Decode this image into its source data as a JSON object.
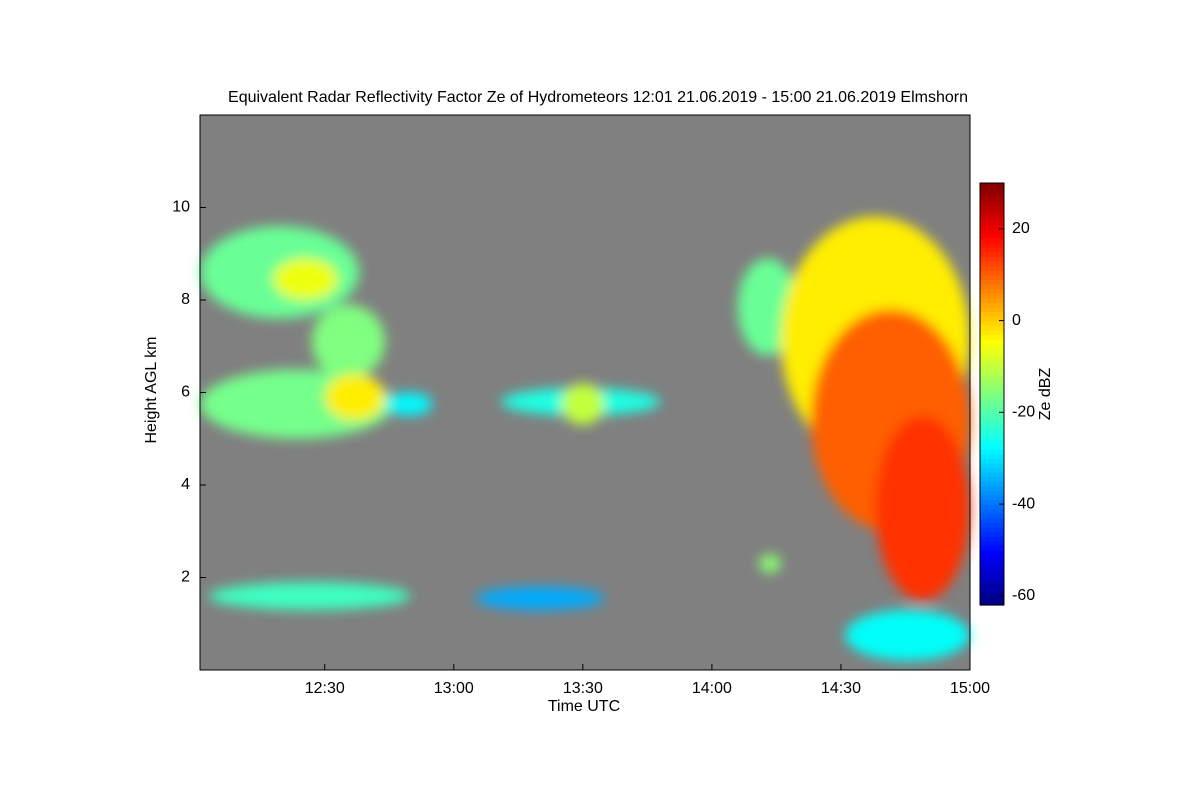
{
  "chart_data": {
    "type": "heatmap",
    "title": "Equivalent Radar Reflectivity Factor Ze of Hydrometeors   12:01 21.06.2019 - 15:00 21.06.2019 Elmshorn",
    "x_label": "Time UTC",
    "y_label": "Height AGL km",
    "colorbar_label": "Ze dBZ",
    "xlim": [
      721,
      900
    ],
    "xticks": [
      {
        "value": 750,
        "label": "12:30"
      },
      {
        "value": 780,
        "label": "13:00"
      },
      {
        "value": 810,
        "label": "13:30"
      },
      {
        "value": 840,
        "label": "14:00"
      },
      {
        "value": 870,
        "label": "14:30"
      },
      {
        "value": 900,
        "label": "15:00"
      }
    ],
    "ylim": [
      0,
      12
    ],
    "yticks": [
      2,
      4,
      6,
      8,
      10
    ],
    "zlim": [
      -62,
      30
    ],
    "zticks": [
      -60,
      -40,
      -20,
      0,
      20
    ],
    "background": "#808080",
    "cells": [
      {
        "x": [
          721,
          758
        ],
        "y": [
          7.6,
          9.6
        ],
        "ze": -18
      },
      {
        "x": [
          738,
          753
        ],
        "y": [
          8.0,
          8.9
        ],
        "ze": -6
      },
      {
        "x": [
          721,
          766
        ],
        "y": [
          5.0,
          6.5
        ],
        "ze": -17
      },
      {
        "x": [
          747,
          764
        ],
        "y": [
          6.3,
          7.9
        ],
        "ze": -16
      },
      {
        "x": [
          750,
          764
        ],
        "y": [
          5.4,
          6.4
        ],
        "ze": -3
      },
      {
        "x": [
          764,
          775
        ],
        "y": [
          5.5,
          6.0
        ],
        "ze": -28
      },
      {
        "x": [
          791,
          828
        ],
        "y": [
          5.5,
          6.1
        ],
        "ze": -25
      },
      {
        "x": [
          805,
          815
        ],
        "y": [
          5.3,
          6.2
        ],
        "ze": -10
      },
      {
        "x": [
          846,
          860
        ],
        "y": [
          6.8,
          8.9
        ],
        "ze": -18
      },
      {
        "x": [
          856,
          900
        ],
        "y": [
          4.5,
          9.8
        ],
        "ze": -3
      },
      {
        "x": [
          863,
          900
        ],
        "y": [
          3.0,
          7.8
        ],
        "ze": 10
      },
      {
        "x": [
          878,
          900
        ],
        "y": [
          1.5,
          5.5
        ],
        "ze": 14
      },
      {
        "x": [
          871,
          900
        ],
        "y": [
          0.2,
          1.3
        ],
        "ze": -27
      },
      {
        "x": [
          723,
          770
        ],
        "y": [
          1.3,
          1.9
        ],
        "ze": -22
      },
      {
        "x": [
          785,
          815
        ],
        "y": [
          1.3,
          1.8
        ],
        "ze": -35
      },
      {
        "x": [
          851,
          856
        ],
        "y": [
          2.1,
          2.5
        ],
        "ze": -15
      }
    ]
  }
}
